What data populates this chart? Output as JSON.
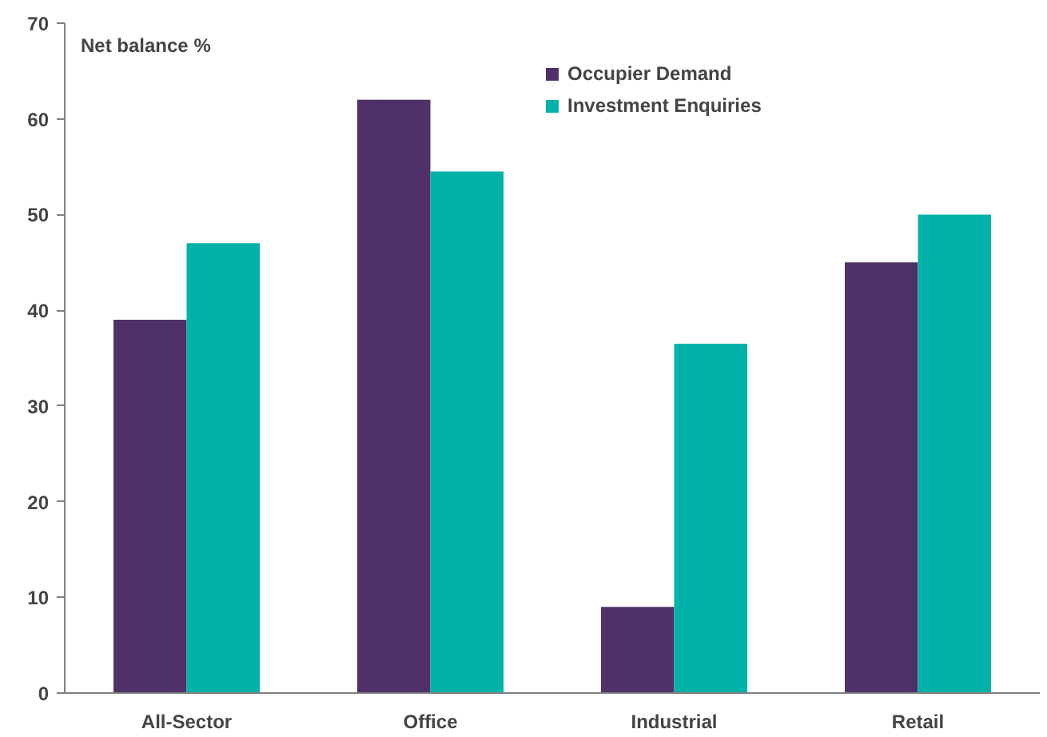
{
  "chart_data": {
    "type": "bar",
    "ylabel": "Net balance %",
    "categories": [
      "All-Sector",
      "Office",
      "Industrial",
      "Retail"
    ],
    "series": [
      {
        "name": "Occupier Demand",
        "color": "#4f3068",
        "values": [
          39,
          62,
          9,
          45
        ]
      },
      {
        "name": "Investment Enquiries",
        "color": "#00b2a9",
        "values": [
          47,
          54.5,
          36.5,
          50
        ]
      }
    ],
    "ylim": [
      0,
      70
    ],
    "yticks": [
      0,
      10,
      20,
      30,
      40,
      50,
      60,
      70
    ],
    "grid": false,
    "legend": "top right"
  }
}
